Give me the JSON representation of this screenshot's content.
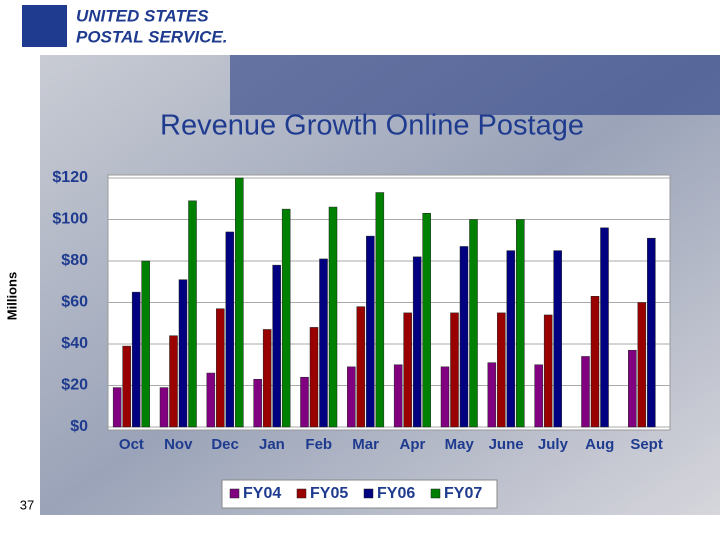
{
  "header": {
    "line1": "UNITED STATES",
    "line2": "POSTAL SERVICE."
  },
  "page_number": "37",
  "chart_data": {
    "type": "bar",
    "title": "Revenue Growth Online Postage",
    "ylabel": "Millions",
    "categories": [
      "Oct",
      "Nov",
      "Dec",
      "Jan",
      "Feb",
      "Mar",
      "Apr",
      "May",
      "June",
      "July",
      "Aug",
      "Sept"
    ],
    "series": [
      {
        "name": "FY04",
        "color": "#800080",
        "values": [
          19,
          19,
          26,
          23,
          24,
          29,
          30,
          29,
          31,
          30,
          34,
          37
        ]
      },
      {
        "name": "FY05",
        "color": "#990000",
        "values": [
          39,
          44,
          57,
          47,
          48,
          58,
          55,
          55,
          55,
          54,
          63,
          60
        ]
      },
      {
        "name": "FY06",
        "color": "#000080",
        "values": [
          65,
          71,
          94,
          78,
          81,
          92,
          82,
          87,
          85,
          85,
          96,
          91
        ]
      },
      {
        "name": "FY07",
        "color": "#008000",
        "values": [
          80,
          109,
          120,
          105,
          106,
          113,
          103,
          100,
          100,
          null,
          null,
          null
        ]
      }
    ],
    "ylim": [
      0,
      120
    ],
    "yticks": [
      {
        "value": 0,
        "label": "$0"
      },
      {
        "value": 20,
        "label": "$20"
      },
      {
        "value": 40,
        "label": "$40"
      },
      {
        "value": 60,
        "label": "$60"
      },
      {
        "value": 80,
        "label": "$80"
      },
      {
        "value": 100,
        "label": "$100"
      },
      {
        "value": 120,
        "label": "$120"
      }
    ],
    "grid": true,
    "legend": "bottom"
  }
}
